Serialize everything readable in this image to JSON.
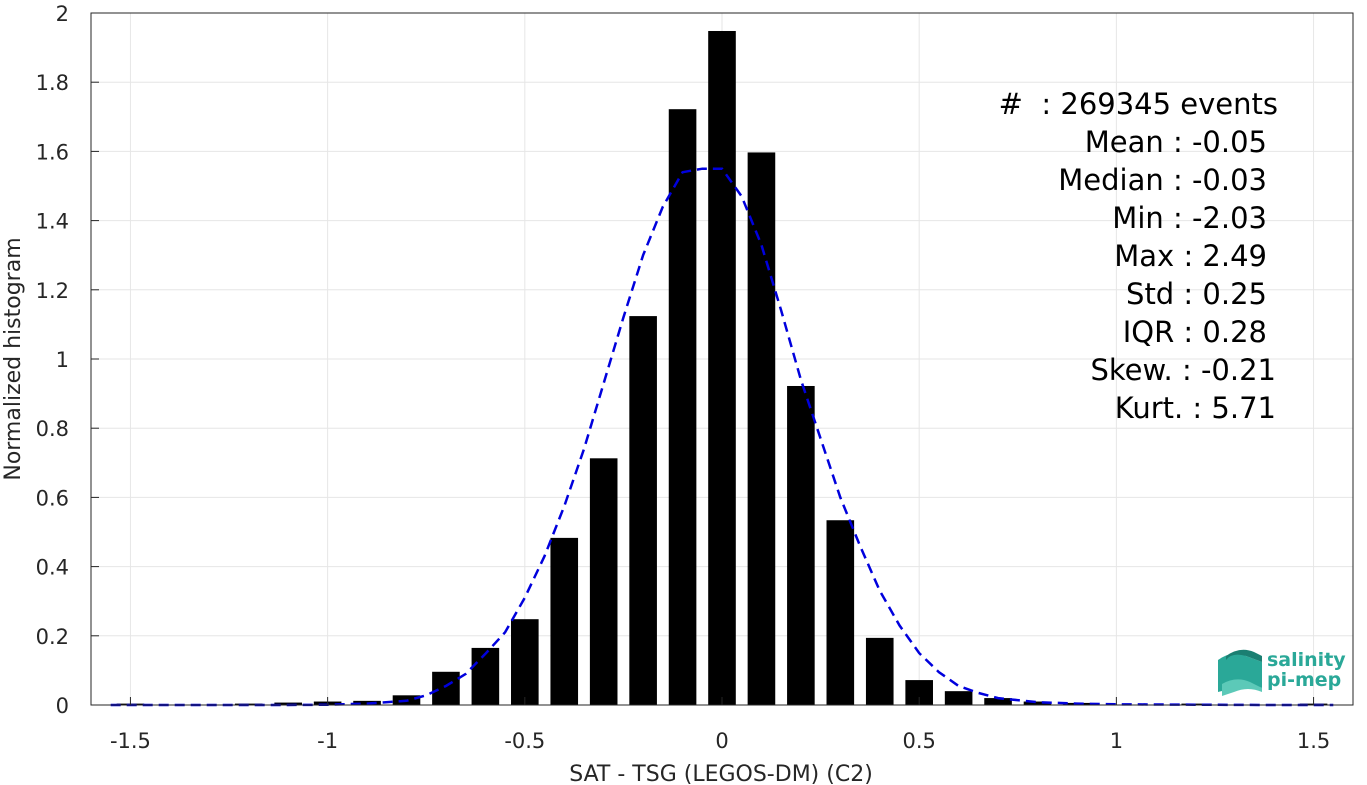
{
  "chart_data": {
    "type": "bar",
    "xlabel": "SAT - TSG (LEGOS-DM) (C2)",
    "ylabel": "Normalized histogram",
    "xlim": [
      -1.6,
      1.6
    ],
    "ylim": [
      0,
      2
    ],
    "xticks": [
      "-1.5",
      "-1",
      "-0.5",
      "0",
      "0.5",
      "1",
      "1.5"
    ],
    "yticks": [
      "0",
      "0.2",
      "0.4",
      "0.6",
      "0.8",
      "1",
      "1.2",
      "1.4",
      "1.6",
      "1.8",
      "2"
    ],
    "grid": true,
    "bar_width": 0.07,
    "bars": {
      "x": [
        -1.5,
        -1.2,
        -1.1,
        -1.0,
        -0.9,
        -0.8,
        -0.7,
        -0.6,
        -0.5,
        -0.4,
        -0.3,
        -0.2,
        -0.1,
        0.0,
        0.1,
        0.2,
        0.3,
        0.4,
        0.5,
        0.6,
        0.7,
        0.8,
        0.9,
        1.2,
        1.5
      ],
      "y": [
        0.004,
        0.004,
        0.007,
        0.01,
        0.012,
        0.028,
        0.096,
        0.165,
        0.248,
        0.483,
        0.713,
        1.124,
        1.722,
        1.948,
        1.597,
        0.922,
        0.534,
        0.194,
        0.072,
        0.04,
        0.02,
        0.01,
        0.006,
        0.004,
        0.004
      ],
      "color": "#000000"
    },
    "fit_curve": {
      "style": "dashed",
      "color": "#0000dd",
      "x": [
        -1.55,
        -1.4,
        -1.3,
        -1.2,
        -1.1,
        -1.0,
        -0.9,
        -0.8,
        -0.75,
        -0.7,
        -0.65,
        -0.6,
        -0.55,
        -0.5,
        -0.45,
        -0.4,
        -0.35,
        -0.3,
        -0.25,
        -0.2,
        -0.15,
        -0.1,
        -0.05,
        0.0,
        0.05,
        0.1,
        0.15,
        0.2,
        0.25,
        0.3,
        0.35,
        0.4,
        0.45,
        0.5,
        0.55,
        0.6,
        0.65,
        0.7,
        0.8,
        0.9,
        1.0,
        1.2,
        1.4,
        1.55
      ],
      "y": [
        0.0,
        0.0,
        0.0,
        0.0,
        0.0,
        0.001,
        0.004,
        0.012,
        0.028,
        0.055,
        0.09,
        0.148,
        0.21,
        0.31,
        0.43,
        0.575,
        0.74,
        0.93,
        1.12,
        1.3,
        1.44,
        1.54,
        1.55,
        1.55,
        1.47,
        1.33,
        1.14,
        0.94,
        0.77,
        0.6,
        0.46,
        0.33,
        0.23,
        0.15,
        0.095,
        0.055,
        0.035,
        0.02,
        0.008,
        0.004,
        0.002,
        0.001,
        0.0,
        0.0
      ]
    },
    "stats": {
      "count": "#  : 269345 events",
      "mean": "Mean : -0.05",
      "median": "Median : -0.03",
      "min": "Min : -2.03",
      "max": "Max : 2.49",
      "std": "Std : 0.25",
      "iqr": "IQR : 0.28",
      "skew": "Skew. : -0.21",
      "kurt": "Kurt. : 5.71"
    }
  },
  "logo": {
    "line1": "salinity",
    "line2": "pi-mep",
    "color": "#2aa898"
  }
}
